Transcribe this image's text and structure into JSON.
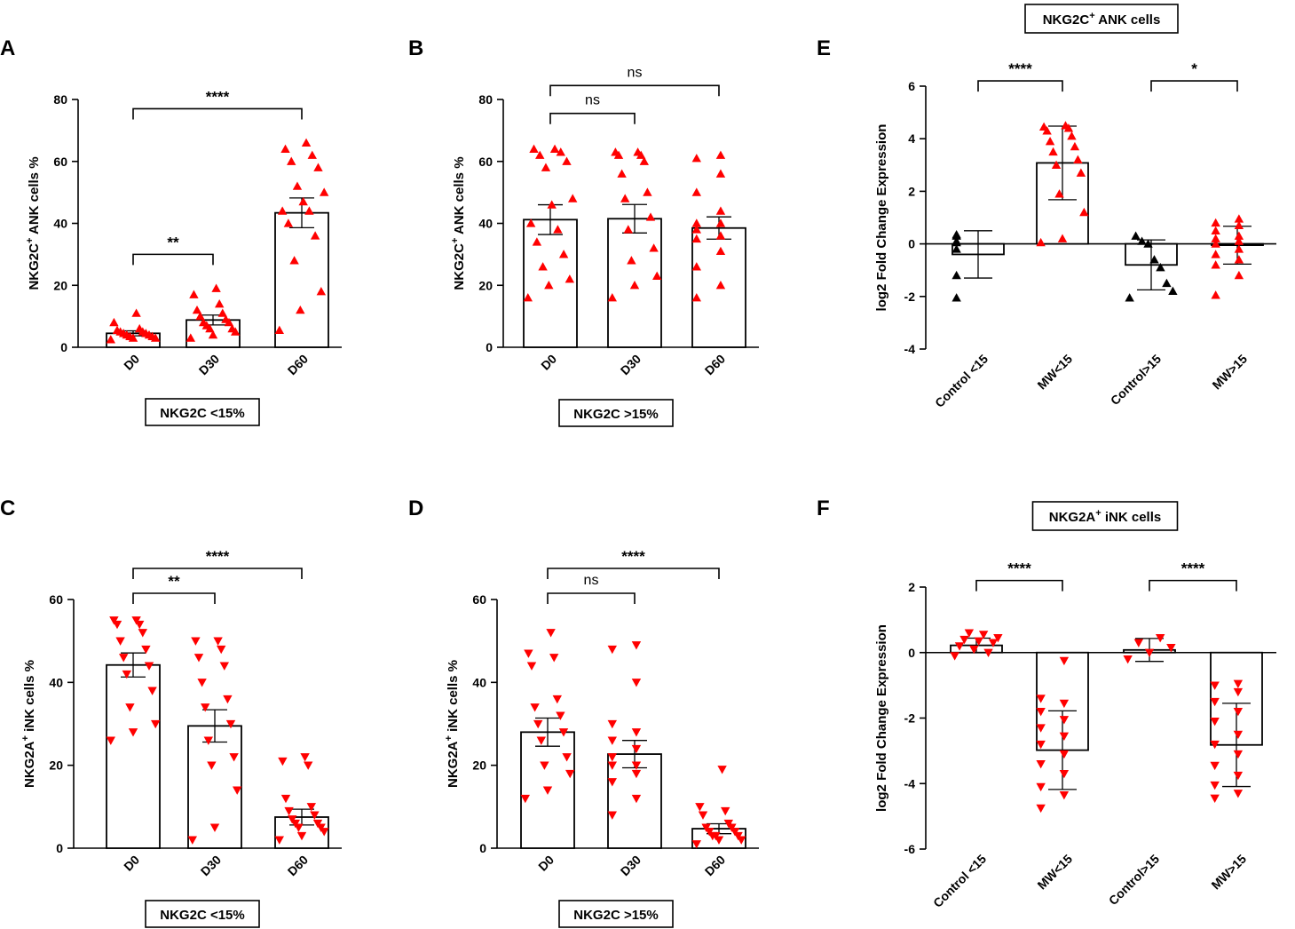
{
  "chart_data": [
    {
      "id": "A",
      "letter": "A",
      "type": "bar",
      "categories": [
        "D0",
        "D30",
        "D60"
      ],
      "values": [
        4.5,
        8.8,
        43.4
      ],
      "sem": [
        0.8,
        1.6,
        4.8
      ],
      "ylim": [
        0,
        80
      ],
      "yticks": [
        "0",
        "20",
        "40",
        "60",
        "80"
      ],
      "ylabel": {
        "pre": "NKG2C",
        "sup": "+",
        "post": " ANK cells %"
      },
      "box_label": "NKG2C <15%",
      "marker": "up",
      "color": "#ff0000",
      "points": [
        [
          2.5,
          3,
          3,
          3.5,
          3.5,
          4,
          4,
          4.5,
          4.5,
          5,
          5,
          5.5,
          6,
          8,
          11
        ],
        [
          3,
          4,
          5,
          6,
          6,
          7,
          8,
          8,
          9,
          10,
          11,
          12,
          14,
          17,
          19
        ],
        [
          5.5,
          12,
          18,
          28,
          36,
          40,
          44,
          44,
          47,
          50,
          52,
          58,
          60,
          62,
          64,
          66
        ]
      ],
      "brackets": [
        {
          "from": 0,
          "to": 1,
          "level": 30,
          "label": "**"
        },
        {
          "from": 0,
          "to": 2,
          "level": 77,
          "label": "****"
        }
      ]
    },
    {
      "id": "B",
      "letter": "B",
      "type": "bar",
      "categories": [
        "D0",
        "D30",
        "D60"
      ],
      "values": [
        41.2,
        41.5,
        38.5
      ],
      "sem": [
        4.8,
        4.6,
        3.6
      ],
      "ylim": [
        0,
        80
      ],
      "yticks": [
        "0",
        "20",
        "40",
        "60",
        "80"
      ],
      "ylabel": {
        "pre": "NKG2C",
        "sup": "+",
        "post": " ANK cells %"
      },
      "box_label": "NKG2C >15%",
      "marker": "up",
      "color": "#ff0000",
      "points": [
        [
          16,
          20,
          22,
          26,
          30,
          34,
          38,
          40,
          46,
          48,
          58,
          60,
          62,
          63,
          64,
          64
        ],
        [
          16,
          20,
          23,
          28,
          32,
          38,
          42,
          48,
          50,
          56,
          60,
          62,
          62,
          63,
          63
        ],
        [
          16,
          20,
          26,
          31,
          35,
          36,
          38,
          40,
          40,
          44,
          50,
          56,
          61,
          62
        ]
      ],
      "brackets": [
        {
          "from": 0,
          "to": 1,
          "level": 75.5,
          "label": "ns"
        },
        {
          "from": 0,
          "to": 2,
          "level": 84.5,
          "label": "ns"
        }
      ]
    },
    {
      "id": "C",
      "letter": "C",
      "type": "bar",
      "categories": [
        "D0",
        "D30",
        "D60"
      ],
      "values": [
        44.2,
        29.5,
        7.5
      ],
      "sem": [
        2.9,
        3.9,
        1.9
      ],
      "ylim": [
        0,
        60
      ],
      "yticks": [
        "0",
        "20",
        "40",
        "60"
      ],
      "ylabel": {
        "pre": "NKG2A",
        "sup": "+",
        "post": " iNK cells %"
      },
      "box_label": "NKG2C <15%",
      "marker": "down",
      "color": "#ff0000",
      "points": [
        [
          26,
          28,
          30,
          34,
          38,
          42,
          44,
          46,
          48,
          50,
          52,
          54,
          54,
          55,
          55
        ],
        [
          2,
          5,
          14,
          20,
          22,
          26,
          30,
          34,
          36,
          40,
          44,
          46,
          48,
          50,
          50
        ],
        [
          2,
          3,
          4,
          5,
          5,
          6,
          6,
          7,
          8,
          9,
          10,
          12,
          20,
          21,
          22
        ]
      ],
      "brackets": [
        {
          "from": 0,
          "to": 1,
          "level": 61.5,
          "label": "**"
        },
        {
          "from": 0,
          "to": 2,
          "level": 67.5,
          "label": "****"
        }
      ]
    },
    {
      "id": "D",
      "letter": "D",
      "type": "bar",
      "categories": [
        "D0",
        "D30",
        "D60"
      ],
      "values": [
        28.0,
        22.7,
        4.7
      ],
      "sem": [
        3.4,
        3.3,
        1.2
      ],
      "ylim": [
        0,
        60
      ],
      "yticks": [
        "0",
        "20",
        "40",
        "60"
      ],
      "ylabel": {
        "pre": "NKG2A",
        "sup": "+",
        "post": " iNK cells %"
      },
      "box_label": "NKG2C >15%",
      "marker": "down",
      "color": "#ff0000",
      "points": [
        [
          12,
          14,
          18,
          20,
          22,
          26,
          28,
          30,
          32,
          34,
          36,
          44,
          46,
          47,
          52
        ],
        [
          8,
          12,
          16,
          18,
          20,
          20,
          22,
          24,
          26,
          28,
          30,
          40,
          48,
          49
        ],
        [
          1,
          2,
          2,
          3,
          3,
          3,
          4,
          4,
          5,
          5,
          6,
          8,
          9,
          10,
          19
        ]
      ],
      "brackets": [
        {
          "from": 0,
          "to": 1,
          "level": 61.5,
          "label": "ns"
        },
        {
          "from": 0,
          "to": 2,
          "level": 67.5,
          "label": "****"
        }
      ]
    },
    {
      "id": "E",
      "letter": "E",
      "type": "bar",
      "title": {
        "pre": "NKG2C",
        "sup": "+",
        "post": " ANK cells"
      },
      "categories": [
        "Control <15",
        "MW<15",
        "Control>15",
        "MW>15"
      ],
      "values": [
        -0.4,
        3.08,
        -0.8,
        -0.05
      ],
      "sd": [
        0.9,
        1.4,
        0.95,
        0.72
      ],
      "ylim": [
        -4,
        6
      ],
      "yticks": [
        "-4",
        "-2",
        "0",
        "2",
        "4",
        "6"
      ],
      "ylabel": {
        "pre": "log2 Fold Change Expression",
        "sup": "",
        "post": ""
      },
      "markers": [
        "up",
        "up",
        "up",
        "up"
      ],
      "colors": [
        "#000000",
        "#ff0000",
        "#000000",
        "#ff0000"
      ],
      "points": [
        [
          -2.05,
          -1.2,
          -0.2,
          0.05,
          0.1,
          0.3,
          0.35
        ],
        [
          0.05,
          0.2,
          1.2,
          1.9,
          2.7,
          3.0,
          3.2,
          3.5,
          3.7,
          3.9,
          4.1,
          4.3,
          4.4,
          4.45,
          4.5
        ],
        [
          -2.05,
          -1.8,
          -1.5,
          -0.9,
          -0.6,
          0.0,
          0.1,
          0.3
        ],
        [
          -1.95,
          -1.2,
          -0.8,
          -0.6,
          -0.4,
          -0.2,
          0.0,
          0.1,
          0.2,
          0.3,
          0.5,
          0.7,
          0.8,
          0.95
        ]
      ],
      "brackets": [
        {
          "from": 0,
          "to": 1,
          "level": 6.2,
          "label": "****"
        },
        {
          "from": 2,
          "to": 3,
          "level": 6.2,
          "label": "*"
        }
      ]
    },
    {
      "id": "F",
      "letter": "F",
      "type": "bar",
      "title": {
        "pre": "NKG2A",
        "sup": "+",
        "post": " iNK cells"
      },
      "categories": [
        "Control <15",
        "MW<15",
        "Control>15",
        "MW>15"
      ],
      "values": [
        0.22,
        -2.98,
        0.08,
        -2.82
      ],
      "sd": [
        0.22,
        1.2,
        0.35,
        1.27
      ],
      "ylim": [
        -6,
        2
      ],
      "yticks": [
        "-6",
        "-4",
        "-2",
        "0",
        "2"
      ],
      "ylabel": {
        "pre": "log2 Fold Change Expression",
        "sup": "",
        "post": ""
      },
      "markers": [
        "down",
        "down",
        "down",
        "down"
      ],
      "colors": [
        "#ff0000",
        "#ff0000",
        "#ff0000",
        "#ff0000"
      ],
      "points": [
        [
          -0.1,
          0.0,
          0.1,
          0.2,
          0.3,
          0.35,
          0.4,
          0.45,
          0.55,
          0.6
        ],
        [
          -4.75,
          -4.35,
          -4.1,
          -3.7,
          -3.4,
          -3.1,
          -2.8,
          -2.55,
          -2.3,
          -2.05,
          -1.8,
          -1.55,
          -1.4,
          -0.25
        ],
        [
          -0.2,
          0.0,
          0.15,
          0.3,
          0.45
        ],
        [
          -4.45,
          -4.3,
          -4.05,
          -3.75,
          -3.45,
          -3.1,
          -2.8,
          -2.5,
          -2.1,
          -1.8,
          -1.5,
          -1.2,
          -1.0,
          -0.95
        ]
      ],
      "brackets": [
        {
          "from": 0,
          "to": 1,
          "level": 2.2,
          "label": "****"
        },
        {
          "from": 2,
          "to": 3,
          "level": 2.2,
          "label": "****"
        }
      ]
    }
  ]
}
